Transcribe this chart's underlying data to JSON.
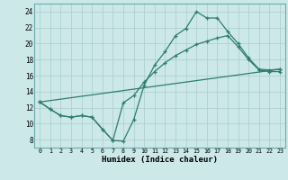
{
  "xlabel": "Humidex (Indice chaleur)",
  "bg_color": "#cce8e8",
  "grid_color": "#aacccc",
  "line_color": "#2e7d6e",
  "xlim": [
    -0.5,
    23.5
  ],
  "ylim": [
    7.0,
    25.0
  ],
  "xticks": [
    0,
    1,
    2,
    3,
    4,
    5,
    6,
    7,
    8,
    9,
    10,
    11,
    12,
    13,
    14,
    15,
    16,
    17,
    18,
    19,
    20,
    21,
    22,
    23
  ],
  "yticks": [
    8,
    10,
    12,
    14,
    16,
    18,
    20,
    22,
    24
  ],
  "line1_x": [
    0,
    1,
    2,
    3,
    4,
    5,
    6,
    7,
    8,
    9,
    10,
    11,
    12,
    13,
    14,
    15,
    16,
    17,
    18,
    19,
    20,
    21,
    22,
    23
  ],
  "line1_y": [
    12.7,
    11.8,
    11.0,
    10.8,
    11.0,
    10.8,
    9.3,
    7.9,
    7.8,
    10.5,
    14.8,
    17.3,
    19.0,
    21.0,
    21.9,
    24.0,
    23.2,
    23.2,
    21.5,
    20.0,
    18.2,
    16.8,
    16.7,
    16.8
  ],
  "line2_x": [
    0,
    1,
    2,
    3,
    4,
    5,
    6,
    7,
    8,
    9,
    10,
    11,
    12,
    13,
    14,
    15,
    16,
    17,
    18,
    19,
    20,
    21,
    22,
    23
  ],
  "line2_y": [
    12.7,
    11.8,
    11.0,
    10.8,
    11.0,
    10.8,
    9.3,
    7.9,
    12.6,
    13.5,
    15.2,
    16.5,
    17.6,
    18.5,
    19.2,
    19.9,
    20.3,
    20.7,
    21.0,
    19.6,
    18.0,
    16.7,
    16.5,
    16.5
  ],
  "line3_x": [
    0,
    23
  ],
  "line3_y": [
    12.7,
    16.8
  ]
}
